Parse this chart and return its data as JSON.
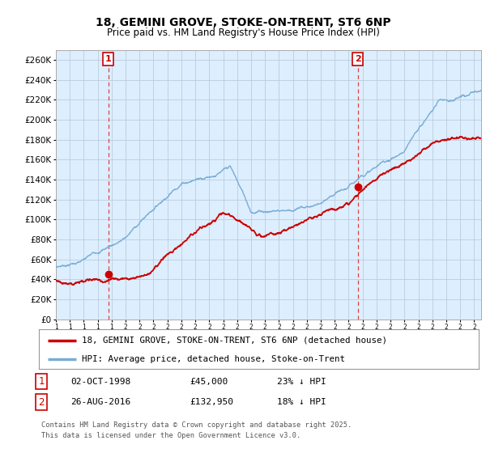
{
  "title": "18, GEMINI GROVE, STOKE-ON-TRENT, ST6 6NP",
  "subtitle": "Price paid vs. HM Land Registry's House Price Index (HPI)",
  "ylim": [
    0,
    270000
  ],
  "yticks": [
    0,
    20000,
    40000,
    60000,
    80000,
    100000,
    120000,
    140000,
    160000,
    180000,
    200000,
    220000,
    240000,
    260000
  ],
  "ytick_labels": [
    "£0",
    "£20K",
    "£40K",
    "£60K",
    "£80K",
    "£100K",
    "£120K",
    "£140K",
    "£160K",
    "£180K",
    "£200K",
    "£220K",
    "£240K",
    "£260K"
  ],
  "sale1_date": 1998.75,
  "sale1_price": 45000,
  "sale1_label": "1",
  "sale2_date": 2016.65,
  "sale2_price": 132950,
  "sale2_label": "2",
  "vline_color": "#dd4444",
  "hpi_color": "#7aadd4",
  "price_color": "#cc0000",
  "grid_color": "#bbccdd",
  "bg_color": "#ffffff",
  "chart_bg": "#ddeeff",
  "legend_label1": "18, GEMINI GROVE, STOKE-ON-TRENT, ST6 6NP (detached house)",
  "legend_label2": "HPI: Average price, detached house, Stoke-on-Trent",
  "note1_num": "1",
  "note1_date": "02-OCT-1998",
  "note1_price": "£45,000",
  "note1_hpi": "23% ↓ HPI",
  "note2_num": "2",
  "note2_date": "26-AUG-2016",
  "note2_price": "£132,950",
  "note2_hpi": "18% ↓ HPI",
  "footer": "Contains HM Land Registry data © Crown copyright and database right 2025.\nThis data is licensed under the Open Government Licence v3.0.",
  "xstart": 1995.0,
  "xend": 2025.5
}
